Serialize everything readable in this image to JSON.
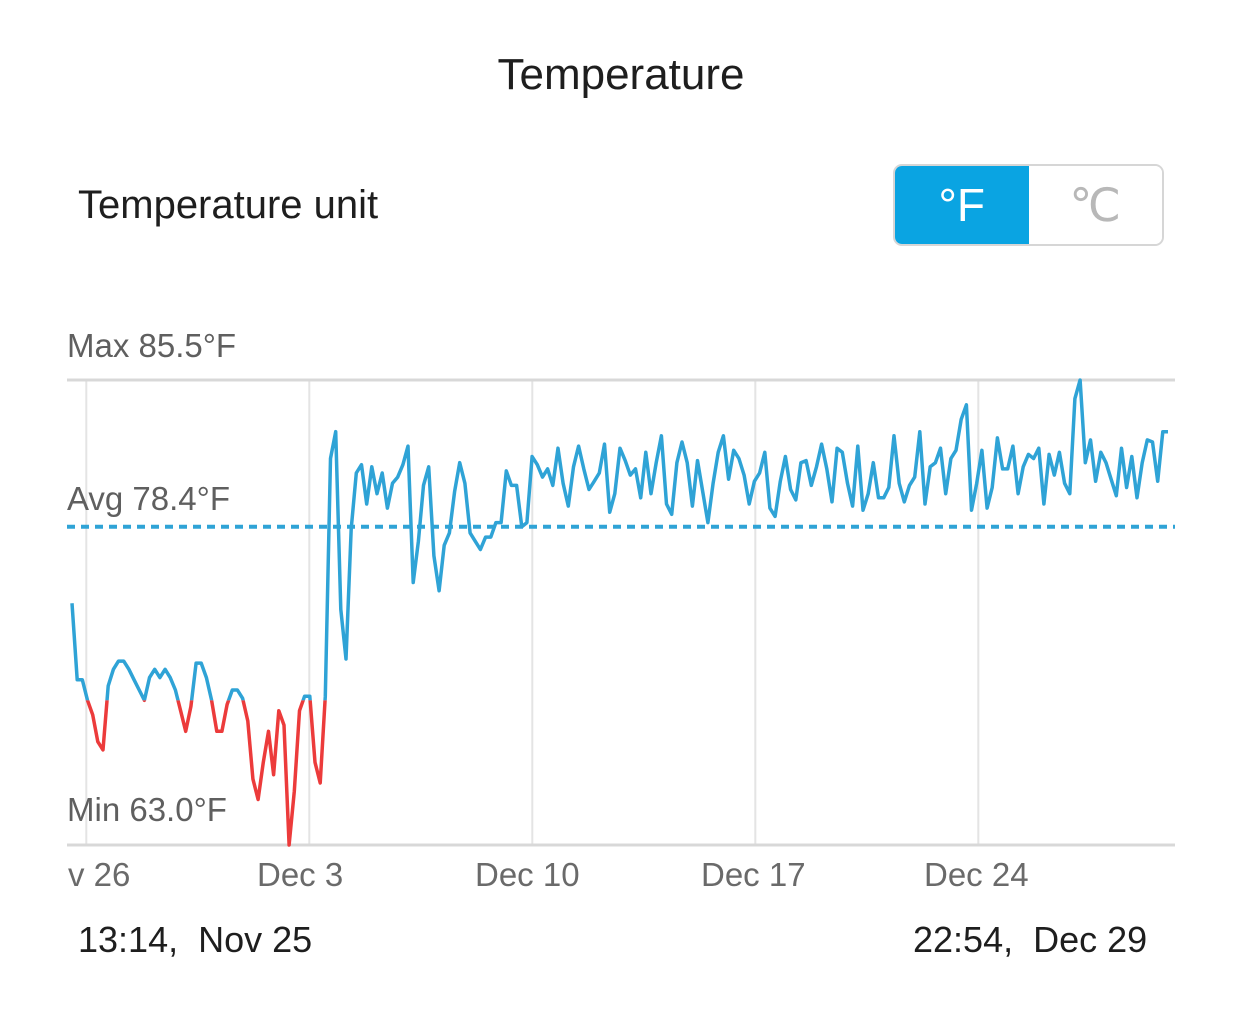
{
  "header": {
    "title": "Temperature"
  },
  "unit_setting": {
    "label": "Temperature unit",
    "options": [
      "°F",
      "℃"
    ],
    "selected": "°F",
    "active_color": "#0aa4e2"
  },
  "chart_data": {
    "type": "line",
    "max_label": "Max 85.5°F",
    "avg_label": "Avg 78.4°F",
    "min_label": "Min 63.0°F",
    "max": 85.5,
    "avg": 78.4,
    "min": 63.0,
    "ylim": [
      63.0,
      85.5
    ],
    "x_start": "2017-11-25T13:14",
    "x_end": "2017-12-29T22:54",
    "x_tick_labels": [
      "v 26",
      "Dec 3",
      "Dec 10",
      "Dec 17",
      "Dec 24"
    ],
    "low_threshold": 70.0,
    "line_color": "#2fa3d6",
    "low_color": "#ec3b3b",
    "avg_line_color": "#2fa3d6",
    "grid": true,
    "series": [
      {
        "values": [
          74.7,
          71.0,
          71.0,
          70.0,
          69.3,
          68.0,
          67.6,
          70.7,
          71.5,
          71.9,
          71.9,
          71.5,
          71.0,
          70.5,
          70.0,
          71.1,
          71.5,
          71.1,
          71.5,
          71.1,
          70.5,
          69.5,
          68.5,
          69.7,
          71.8,
          71.8,
          71.1,
          70.0,
          68.5,
          68.5,
          69.8,
          70.5,
          70.5,
          70.1,
          69.0,
          66.2,
          65.2,
          67.0,
          68.5,
          66.4,
          69.5,
          68.8,
          63.0,
          65.6,
          69.5,
          70.2,
          70.2,
          67.0,
          66.0,
          70.2,
          81.7,
          83.0,
          74.4,
          72.0,
          78.3,
          81.0,
          81.4,
          79.5,
          81.3,
          80.0,
          81.0,
          79.3,
          80.5,
          80.8,
          81.4,
          82.3,
          75.7,
          77.7,
          80.4,
          81.3,
          77.0,
          75.3,
          77.5,
          78.1,
          80.1,
          81.5,
          80.5,
          78.1,
          77.7,
          77.3,
          77.9,
          77.9,
          78.6,
          78.6,
          81.1,
          80.4,
          80.4,
          78.4,
          78.6,
          81.8,
          81.4,
          80.8,
          81.2,
          80.4,
          82.2,
          80.5,
          79.4,
          81.3,
          82.3,
          81.2,
          80.2,
          80.6,
          81.0,
          82.4,
          79.1,
          80.0,
          82.2,
          81.6,
          80.9,
          81.2,
          79.8,
          82.0,
          80.0,
          81.5,
          82.8,
          79.5,
          79.0,
          81.5,
          82.5,
          81.5,
          79.4,
          81.6,
          80.1,
          78.6,
          80.5,
          82.0,
          82.8,
          80.7,
          82.1,
          81.7,
          80.9,
          79.5,
          80.6,
          81.0,
          82.0,
          79.3,
          78.9,
          80.6,
          81.8,
          80.2,
          79.7,
          81.5,
          81.6,
          80.4,
          81.3,
          82.4,
          81.2,
          79.6,
          82.2,
          82.0,
          80.5,
          79.4,
          82.3,
          79.2,
          80.0,
          81.5,
          79.8,
          79.8,
          80.3,
          82.8,
          80.5,
          79.6,
          80.4,
          80.8,
          83.0,
          79.5,
          81.3,
          81.5,
          82.2,
          80.0,
          81.7,
          82.1,
          83.6,
          84.3,
          79.2,
          80.5,
          82.1,
          79.3,
          80.3,
          82.7,
          81.2,
          81.2,
          82.3,
          80.0,
          81.3,
          81.9,
          81.7,
          82.2,
          79.5,
          81.9,
          80.9,
          82.0,
          80.5,
          80.0,
          84.6,
          85.5,
          81.5,
          82.6,
          80.6,
          82.0,
          81.5,
          80.7,
          79.9,
          82.2,
          80.3,
          81.8,
          79.8,
          81.5,
          82.6,
          82.5,
          80.6,
          83.0,
          83.0
        ]
      }
    ]
  },
  "footer": {
    "start": "13:14,  Nov 25",
    "end": "22:54,  Dec 29"
  }
}
